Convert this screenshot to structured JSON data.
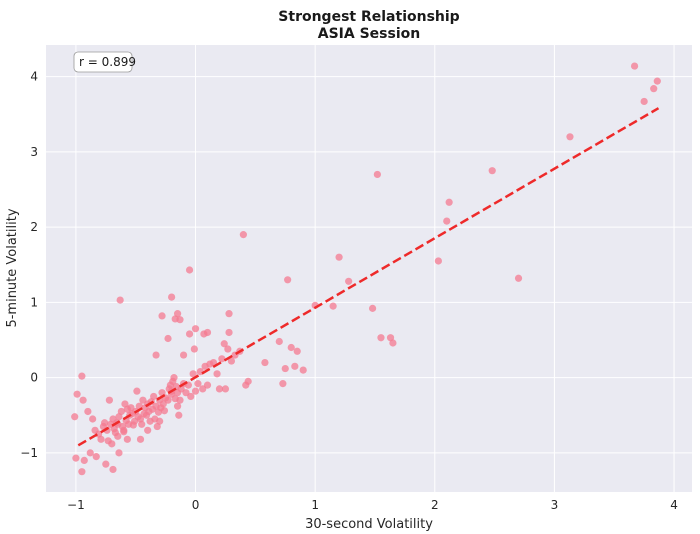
{
  "chart_data": {
    "type": "scatter",
    "title": "Strongest Relationship",
    "subtitle": "ASIA Session",
    "xlabel": "30-second Volatility",
    "ylabel": "5-minute Volatility",
    "xlim": [
      -1.25,
      4.15
    ],
    "ylim": [
      -1.52,
      4.42
    ],
    "xticks": [
      -1,
      0,
      1,
      2,
      3,
      4
    ],
    "yticks": [
      -1,
      0,
      1,
      2,
      3,
      4
    ],
    "grid": true,
    "annotation": "r = 0.899",
    "point_color": "#f47a90",
    "fit_color": "#ee2a2a",
    "background_color": "#eaeaf2",
    "fit_line": {
      "x": [
        -0.98,
        3.87
      ],
      "y": [
        -0.9,
        3.58
      ]
    },
    "points": [
      [
        -1.0,
        -1.07
      ],
      [
        -0.95,
        -1.25
      ],
      [
        -0.93,
        -1.1
      ],
      [
        -0.88,
        -1.0
      ],
      [
        -0.83,
        -1.05
      ],
      [
        -0.75,
        -1.15
      ],
      [
        -0.69,
        -1.22
      ],
      [
        -0.64,
        -1.0
      ],
      [
        -1.01,
        -0.52
      ],
      [
        -0.99,
        -0.22
      ],
      [
        -0.94,
        -0.3
      ],
      [
        -0.9,
        -0.45
      ],
      [
        -0.86,
        -0.55
      ],
      [
        -0.84,
        -0.7
      ],
      [
        -0.81,
        -0.75
      ],
      [
        -0.79,
        -0.82
      ],
      [
        -0.77,
        -0.65
      ],
      [
        -0.76,
        -0.6
      ],
      [
        -0.74,
        -0.7
      ],
      [
        -0.73,
        -0.84
      ],
      [
        -0.71,
        -0.62
      ],
      [
        -0.7,
        -0.88
      ],
      [
        -0.69,
        -0.55
      ],
      [
        -0.68,
        -0.68
      ],
      [
        -0.67,
        -0.73
      ],
      [
        -0.66,
        -0.6
      ],
      [
        -0.65,
        -0.78
      ],
      [
        -0.64,
        -0.52
      ],
      [
        -0.62,
        -0.45
      ],
      [
        -0.61,
        -0.65
      ],
      [
        -0.6,
        -0.7
      ],
      [
        -0.59,
        -0.35
      ],
      [
        -0.58,
        -0.57
      ],
      [
        -0.57,
        -0.42
      ],
      [
        -0.56,
        -0.62
      ],
      [
        -0.55,
        -0.5
      ],
      [
        -0.54,
        -0.4
      ],
      [
        -0.53,
        -0.48
      ],
      [
        -0.52,
        -0.63
      ],
      [
        -0.51,
        -0.58
      ],
      [
        -0.5,
        -0.45
      ],
      [
        -0.49,
        -0.18
      ],
      [
        -0.48,
        -0.52
      ],
      [
        -0.47,
        -0.38
      ],
      [
        -0.46,
        -0.55
      ],
      [
        -0.45,
        -0.62
      ],
      [
        -0.44,
        -0.3
      ],
      [
        -0.43,
        -0.48
      ],
      [
        -0.42,
        -0.4
      ],
      [
        -0.41,
        -0.5
      ],
      [
        -0.4,
        -0.35
      ],
      [
        -0.39,
        -0.45
      ],
      [
        -0.38,
        -0.58
      ],
      [
        -0.37,
        -0.32
      ],
      [
        -0.36,
        -0.42
      ],
      [
        -0.35,
        -0.25
      ],
      [
        -0.34,
        -0.55
      ],
      [
        -0.33,
        -0.38
      ],
      [
        -0.32,
        -0.65
      ],
      [
        -0.31,
        -0.46
      ],
      [
        -0.3,
        -0.3
      ],
      [
        -0.29,
        -0.4
      ],
      [
        -0.28,
        -0.2
      ],
      [
        -0.27,
        -0.35
      ],
      [
        -0.26,
        -0.44
      ],
      [
        -0.25,
        -0.27
      ],
      [
        -0.23,
        -0.3
      ],
      [
        -0.22,
        -0.15
      ],
      [
        -0.21,
        -0.1
      ],
      [
        -0.2,
        -0.22
      ],
      [
        -0.19,
        -0.05
      ],
      [
        -0.18,
        0.0
      ],
      [
        -0.17,
        -0.28
      ],
      [
        -0.16,
        -0.12
      ],
      [
        -0.15,
        -0.2
      ],
      [
        -0.14,
        -0.5
      ],
      [
        -0.13,
        -0.3
      ],
      [
        -0.12,
        -0.15
      ],
      [
        -0.1,
        -0.08
      ],
      [
        -0.08,
        -0.2
      ],
      [
        -0.06,
        -0.1
      ],
      [
        -0.04,
        -0.25
      ],
      [
        -0.02,
        0.05
      ],
      [
        0.0,
        -0.18
      ],
      [
        0.02,
        -0.08
      ],
      [
        0.04,
        0.08
      ],
      [
        0.06,
        -0.15
      ],
      [
        0.08,
        0.15
      ],
      [
        0.1,
        -0.1
      ],
      [
        0.12,
        0.18
      ],
      [
        0.15,
        0.2
      ],
      [
        0.18,
        0.05
      ],
      [
        0.2,
        -0.15
      ],
      [
        0.22,
        0.25
      ],
      [
        0.25,
        -0.15
      ],
      [
        0.27,
        0.38
      ],
      [
        0.3,
        0.22
      ],
      [
        0.33,
        0.3
      ],
      [
        0.37,
        0.35
      ],
      [
        0.42,
        -0.1
      ],
      [
        0.44,
        -0.05
      ],
      [
        -0.95,
        0.02
      ],
      [
        -0.72,
        -0.3
      ],
      [
        -0.65,
        -0.62
      ],
      [
        -0.6,
        -0.72
      ],
      [
        -0.57,
        -0.82
      ],
      [
        -0.46,
        -0.82
      ],
      [
        -0.4,
        -0.7
      ],
      [
        -0.3,
        -0.58
      ],
      [
        -0.2,
        -0.18
      ],
      [
        -0.15,
        -0.38
      ],
      [
        -0.1,
        0.3
      ],
      [
        -0.01,
        0.38
      ],
      [
        0.1,
        0.6
      ],
      [
        0.24,
        0.45
      ],
      [
        -0.33,
        0.3
      ],
      [
        -0.23,
        0.52
      ],
      [
        -0.17,
        0.78
      ],
      [
        -0.15,
        0.85
      ],
      [
        -0.05,
        0.58
      ],
      [
        0.0,
        0.65
      ],
      [
        0.07,
        0.58
      ],
      [
        0.28,
        0.85
      ],
      [
        0.28,
        0.6
      ],
      [
        -0.28,
        0.82
      ],
      [
        -0.2,
        1.07
      ],
      [
        -0.13,
        0.77
      ],
      [
        -0.05,
        1.43
      ],
      [
        -0.63,
        1.03
      ],
      [
        0.4,
        1.9
      ],
      [
        0.58,
        0.2
      ],
      [
        0.7,
        0.48
      ],
      [
        0.73,
        -0.08
      ],
      [
        0.75,
        0.12
      ],
      [
        0.8,
        0.4
      ],
      [
        0.83,
        0.15
      ],
      [
        0.85,
        0.35
      ],
      [
        0.9,
        0.1
      ],
      [
        0.77,
        1.3
      ],
      [
        1.0,
        0.96
      ],
      [
        1.15,
        0.95
      ],
      [
        1.2,
        1.6
      ],
      [
        1.28,
        1.28
      ],
      [
        1.48,
        0.92
      ],
      [
        1.55,
        0.53
      ],
      [
        1.63,
        0.53
      ],
      [
        1.65,
        0.46
      ],
      [
        1.52,
        2.7
      ],
      [
        2.03,
        1.55
      ],
      [
        2.1,
        2.08
      ],
      [
        2.12,
        2.33
      ],
      [
        2.48,
        2.75
      ],
      [
        2.7,
        1.32
      ],
      [
        3.13,
        3.2
      ],
      [
        3.67,
        4.14
      ],
      [
        3.75,
        3.67
      ],
      [
        3.83,
        3.84
      ],
      [
        3.86,
        3.94
      ]
    ]
  }
}
